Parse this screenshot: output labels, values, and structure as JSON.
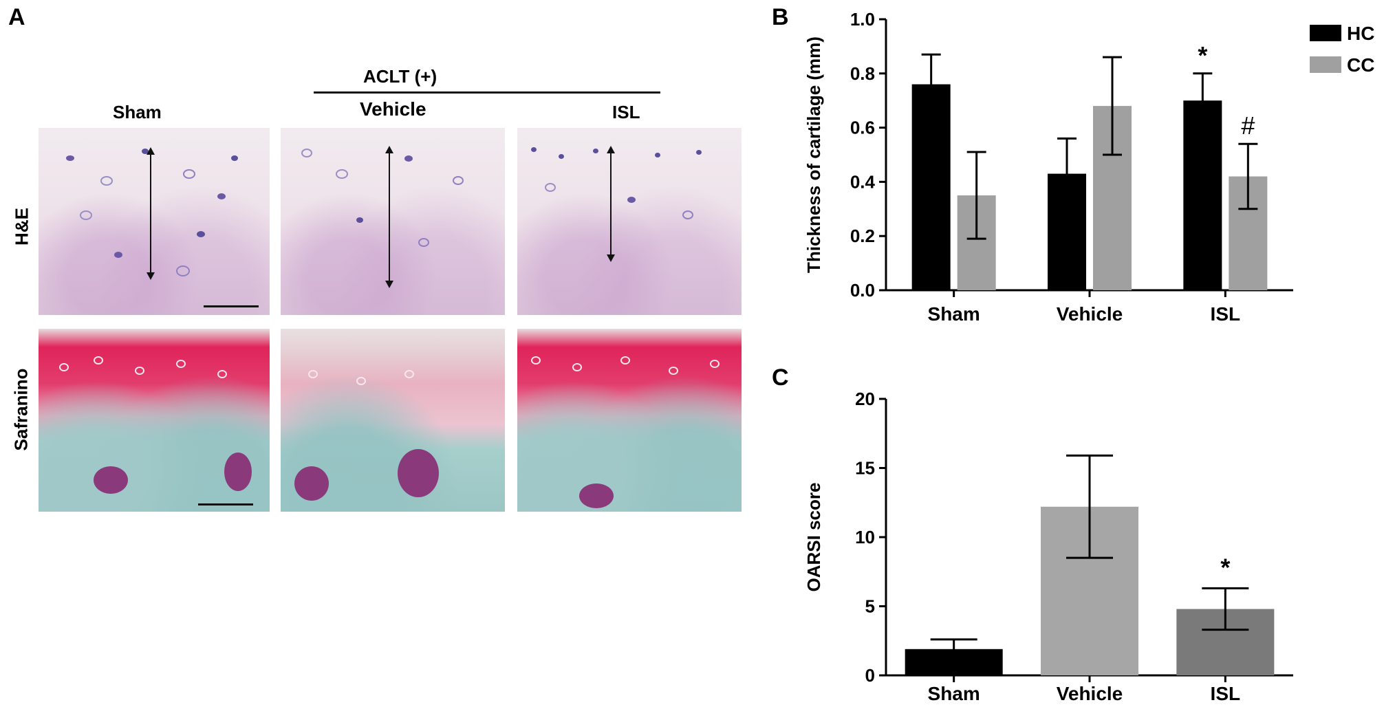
{
  "panel_a": {
    "letter": "A",
    "group_header": "ACLT (+)",
    "columns": [
      "Sham",
      "Vehicle",
      "ISL"
    ],
    "rows": [
      "H&E",
      "Safranino"
    ]
  },
  "chart_data": [
    {
      "panel": "B",
      "type": "bar",
      "categories": [
        "Sham",
        "Vehicle",
        "ISL"
      ],
      "series": [
        {
          "name": "HC",
          "values": [
            0.76,
            0.43,
            0.7
          ],
          "errors": [
            0.11,
            0.13,
            0.1
          ],
          "color": "#000000"
        },
        {
          "name": "CC",
          "values": [
            0.35,
            0.68,
            0.42
          ],
          "errors": [
            0.16,
            0.18,
            0.12
          ],
          "color": "#a0a0a0"
        }
      ],
      "ylabel": "Thickness of cartilage (mm)",
      "ylim": [
        0,
        1.0
      ],
      "yticks": [
        "0.0",
        "0.2",
        "0.4",
        "0.6",
        "0.8",
        "1.0"
      ],
      "annotations": [
        "*",
        "#"
      ],
      "legend": "top-right"
    },
    {
      "panel": "C",
      "type": "bar",
      "categories": [
        "Sham",
        "Vehicle",
        "ISL"
      ],
      "values": [
        1.9,
        12.2,
        4.8
      ],
      "errors": [
        0.7,
        3.7,
        1.5
      ],
      "colors": [
        "#000000",
        "#a6a6a6",
        "#7a7a7a"
      ],
      "ylabel": "OARSI score",
      "ylim": [
        0,
        20
      ],
      "yticks": [
        "0",
        "5",
        "10",
        "15",
        "20"
      ],
      "annotations": [
        "*"
      ]
    }
  ]
}
